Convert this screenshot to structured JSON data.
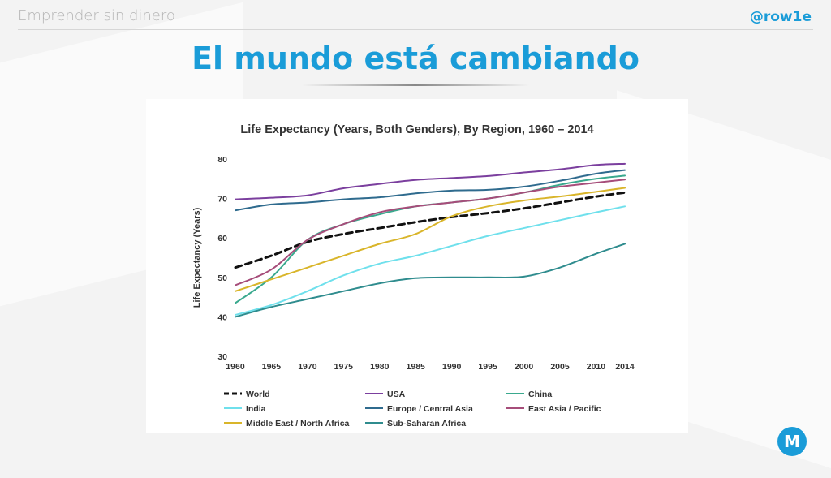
{
  "header": {
    "left_text": "Emprender sin dinero",
    "right_text": "@row1e"
  },
  "slide": {
    "title": "El mundo está cambiando"
  },
  "colors": {
    "accent": "#1a9cd8",
    "world": "#111111",
    "usa": "#7b3f9e",
    "china": "#3aa98e",
    "india": "#6fe0ec",
    "europe_central_asia": "#2f6b8e",
    "east_asia_pacific": "#a64d7a",
    "middle_east_north_africa": "#d9b52a",
    "sub_saharan_africa": "#2f8c8e"
  },
  "logo": {
    "icon": "m-logo-icon",
    "text": "M"
  },
  "chart_data": {
    "type": "line",
    "title": "Life Expectancy (Years, Both Genders), By Region, 1960 – 2014",
    "xlabel": "",
    "ylabel": "Life Expectancy (Years)",
    "xlim": [
      1960,
      2014
    ],
    "ylim": [
      30,
      80
    ],
    "x_ticks": [
      1960,
      1965,
      1970,
      1975,
      1980,
      1985,
      1990,
      1995,
      2000,
      2005,
      2010,
      2014
    ],
    "y_ticks": [
      30,
      40,
      50,
      60,
      70,
      80
    ],
    "grid": false,
    "legend_position": "bottom",
    "x": [
      1960,
      1965,
      1970,
      1975,
      1980,
      1985,
      1990,
      1995,
      2000,
      2005,
      2010,
      2014
    ],
    "series": [
      {
        "name": "World",
        "color_key": "world",
        "dashed": true,
        "values": [
          52.5,
          55.5,
          59,
          61,
          62.5,
          64,
          65.3,
          66.3,
          67.5,
          69,
          70.5,
          71.5
        ]
      },
      {
        "name": "USA",
        "color_key": "usa",
        "values": [
          69.8,
          70.2,
          70.8,
          72.6,
          73.7,
          74.7,
          75.2,
          75.7,
          76.6,
          77.4,
          78.5,
          78.8
        ]
      },
      {
        "name": "China",
        "color_key": "china",
        "values": [
          43.5,
          50,
          59.5,
          63.5,
          66,
          68,
          69,
          70,
          71.5,
          73.5,
          75,
          75.8
        ]
      },
      {
        "name": "India",
        "color_key": "india",
        "values": [
          40.5,
          43,
          46.5,
          50.5,
          53.5,
          55.5,
          58,
          60.5,
          62.5,
          64.5,
          66.5,
          68
        ]
      },
      {
        "name": "Europe / Central Asia",
        "color_key": "europe_central_asia",
        "values": [
          67,
          68.5,
          69,
          69.8,
          70.3,
          71.3,
          72,
          72.2,
          73,
          74.5,
          76.3,
          77.2
        ]
      },
      {
        "name": "East Asia / Pacific",
        "color_key": "east_asia_pacific",
        "values": [
          48,
          52,
          59.5,
          63.5,
          66.5,
          68,
          69,
          70,
          71.5,
          73,
          74,
          74.8
        ]
      },
      {
        "name": "Middle East / North Africa",
        "color_key": "middle_east_north_africa",
        "values": [
          46.5,
          49.5,
          52.5,
          55.5,
          58.5,
          61,
          65.5,
          68,
          69.5,
          70.5,
          71.7,
          72.7
        ]
      },
      {
        "name": "Sub-Saharan Africa",
        "color_key": "sub_saharan_africa",
        "values": [
          40,
          42.5,
          44.5,
          46.5,
          48.5,
          49.8,
          50,
          50,
          50.2,
          52.5,
          56,
          58.5
        ]
      }
    ]
  }
}
